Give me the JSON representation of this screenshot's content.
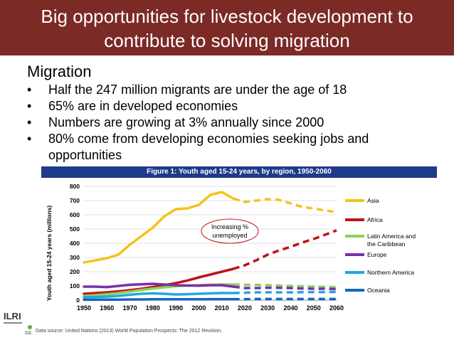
{
  "header": {
    "title_line1": "Big opportunities for livestock development to",
    "title_line2": "contribute to solving migration"
  },
  "section_heading": "Migration",
  "bullets": [
    "Half the 247 million migrants are under the age of 18",
    "65% are in developed economies",
    "Numbers are growing at 3% annually since 2000",
    "80% come from developing economies seeking jobs and opportunities"
  ],
  "bullet_glyph": "•",
  "logos": {
    "ilri": "ILRI",
    "cg": "CG"
  },
  "source_text": "Data source: United Nations (2013) World Population Prospects: The 2012 Revision.",
  "colors": {
    "header_bg": "#7b2a26",
    "chart_title_bg": "#1e3a8a",
    "asia": "#f6c21a",
    "africa": "#c0121a",
    "latin_america": "#8dd15a",
    "europe": "#7a2fa8",
    "northern_america": "#22a7e0",
    "oceania": "#1565c0"
  },
  "chart_data": {
    "type": "line",
    "title": "Figure 1: Youth aged 15-24 years, by region, 1950-2060",
    "xlabel": "",
    "ylabel": "Youth aged 15-24 years (millions)",
    "xlim": [
      1950,
      2060
    ],
    "ylim": [
      0,
      800
    ],
    "x_ticks": [
      1950,
      1960,
      1970,
      1980,
      1990,
      2000,
      2010,
      2020,
      2030,
      2040,
      2050,
      2060
    ],
    "y_ticks": [
      0,
      100,
      200,
      300,
      400,
      500,
      600,
      700,
      800
    ],
    "projection_start": 2015,
    "annotation": "Increasing % unemployed",
    "legend_position": "right",
    "x": [
      1950,
      1955,
      1960,
      1965,
      1970,
      1975,
      1980,
      1985,
      1990,
      1995,
      2000,
      2005,
      2010,
      2015,
      2020,
      2025,
      2030,
      2035,
      2040,
      2045,
      2050,
      2055,
      2060
    ],
    "series": [
      {
        "name": "Asia",
        "color_key": "asia",
        "values": [
          265,
          280,
          295,
          320,
          390,
          450,
          510,
          590,
          640,
          645,
          670,
          740,
          760,
          715,
          690,
          700,
          710,
          705,
          680,
          655,
          645,
          630,
          620
        ]
      },
      {
        "name": "Africa",
        "color_key": "africa",
        "values": [
          45,
          50,
          55,
          62,
          70,
          80,
          92,
          105,
          120,
          138,
          160,
          180,
          200,
          220,
          245,
          280,
          320,
          350,
          375,
          405,
          430,
          460,
          490
        ]
      },
      {
        "name": "Latin America and the Caribbean",
        "color_key": "latin_america",
        "values": [
          30,
          35,
          42,
          50,
          60,
          72,
          82,
          90,
          98,
          102,
          105,
          108,
          110,
          110,
          108,
          107,
          105,
          103,
          100,
          98,
          95,
          93,
          90
        ]
      },
      {
        "name": "Europe",
        "color_key": "europe",
        "values": [
          95,
          95,
          92,
          100,
          108,
          112,
          115,
          110,
          105,
          103,
          102,
          105,
          105,
          95,
          85,
          85,
          87,
          87,
          85,
          82,
          80,
          80,
          78
        ]
      },
      {
        "name": "Northern America",
        "color_key": "northern_america",
        "values": [
          20,
          22,
          25,
          30,
          38,
          45,
          48,
          45,
          40,
          42,
          45,
          48,
          50,
          50,
          52,
          55,
          55,
          55,
          55,
          56,
          57,
          57,
          58
        ]
      },
      {
        "name": "Oceania",
        "color_key": "oceania",
        "values": [
          3,
          3,
          4,
          4,
          5,
          5,
          6,
          6,
          6,
          6,
          6,
          7,
          7,
          7,
          7,
          8,
          8,
          8,
          8,
          8,
          8,
          8,
          8
        ]
      }
    ]
  }
}
